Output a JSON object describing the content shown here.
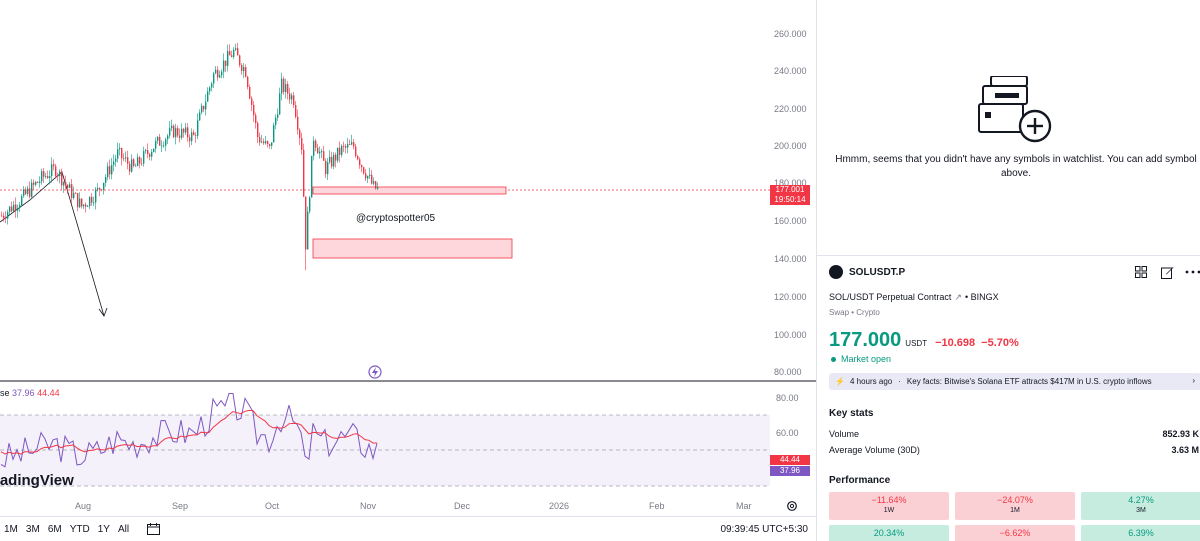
{
  "chart": {
    "price_axis": [
      "260.000",
      "240.000",
      "220.000",
      "200.000",
      "180.000",
      "160.000",
      "140.000",
      "120.000",
      "100.000",
      "80.000"
    ],
    "current_price": "177.001",
    "countdown": "19:50:14",
    "watermark": "@cryptospotter05",
    "brand": "radingView",
    "rsi_legend_label": "se",
    "rsi_value_1": "37.96",
    "rsi_value_2": "44.44",
    "rsi_axis": [
      "80.00",
      "60.00"
    ],
    "rsi_tag_red": "44.44",
    "rsi_tag_purple": "37.96",
    "time_axis": [
      "Aug",
      "Sep",
      "Oct",
      "Nov",
      "Dec",
      "2026",
      "Feb",
      "Mar"
    ],
    "colors": {
      "up": "#089981",
      "down": "#f23645",
      "rsi": "#7e57c2",
      "rsi_ma": "#f23645"
    }
  },
  "bottom_bar": {
    "ranges": [
      "1M",
      "3M",
      "6M",
      "YTD",
      "1Y",
      "All"
    ],
    "clock": "09:39:45 UTC+5:30"
  },
  "watchlist": {
    "empty_message": "Hmmm, seems that you didn't have any symbols in watchlist. You can add symbol above."
  },
  "symbol": {
    "ticker": "SOLUSDT.P",
    "description": "SOL/USDT Perpetual Contract",
    "exchange": "BINGX",
    "type_line": "Swap • Crypto",
    "price": "177.000",
    "currency": "USDT",
    "change": "−10.698",
    "change_pct": "−5.70%",
    "market_status": "Market open",
    "news_age": "4 hours ago",
    "news_text": "Key facts: Bitwise's Solana ETF attracts $417M in U.S. crypto inflows"
  },
  "key_stats": {
    "title": "Key stats",
    "rows": [
      {
        "label": "Volume",
        "value": "852.93 K"
      },
      {
        "label": "Average Volume (30D)",
        "value": "3.63 M"
      }
    ]
  },
  "performance": {
    "title": "Performance",
    "cells": [
      {
        "value": "−11.64%",
        "label": "1W",
        "trend": "neg"
      },
      {
        "value": "−24.07%",
        "label": "1M",
        "trend": "neg"
      },
      {
        "value": "4.27%",
        "label": "3M",
        "trend": "pos"
      },
      {
        "value": "20.34%",
        "label": "",
        "trend": "pos"
      },
      {
        "value": "−6.62%",
        "label": "",
        "trend": "neg"
      },
      {
        "value": "6.39%",
        "label": "",
        "trend": "pos"
      }
    ]
  }
}
